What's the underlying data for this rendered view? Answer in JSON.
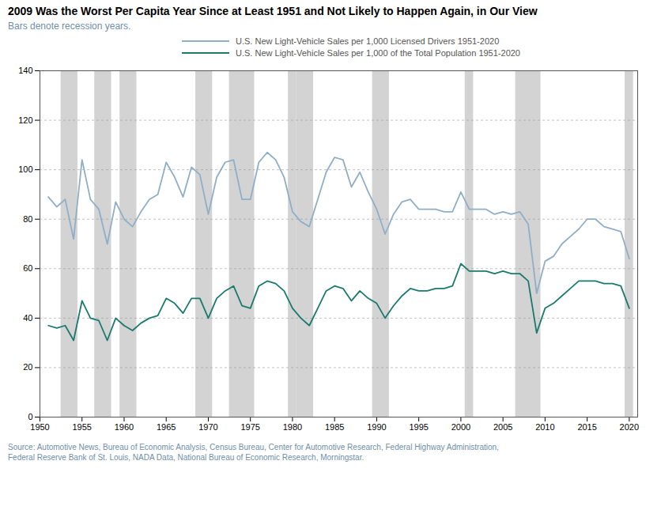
{
  "chart_data": {
    "type": "line",
    "title": "2009 Was the Worst Per Capita Year Since at Least 1951 and Not Likely to Happen Again, in Our View",
    "subtitle": "Bars denote recession years.",
    "source": [
      "Source: Automotive News, Bureau of Economic Analysis, Census Bureau, Center for Automotive Research, Federal Highway Administration,",
      "Federal Reserve Bank of St. Louis, NADA Data, National Bureau of Economic Research, Morningstar."
    ],
    "recession_bands": [
      [
        1953,
        1954
      ],
      [
        1957,
        1958
      ],
      [
        1960,
        1961
      ],
      [
        1969,
        1970
      ],
      [
        1973,
        1975
      ],
      [
        1980,
        1980
      ],
      [
        1981,
        1982
      ],
      [
        1990,
        1991
      ],
      [
        2001,
        2001
      ],
      [
        2007,
        2009
      ],
      [
        2020,
        2020
      ]
    ],
    "x": [
      1951,
      1952,
      1953,
      1954,
      1955,
      1956,
      1957,
      1958,
      1959,
      1960,
      1961,
      1962,
      1963,
      1964,
      1965,
      1966,
      1967,
      1968,
      1969,
      1970,
      1971,
      1972,
      1973,
      1974,
      1975,
      1976,
      1977,
      1978,
      1979,
      1980,
      1981,
      1982,
      1983,
      1984,
      1985,
      1986,
      1987,
      1988,
      1989,
      1990,
      1991,
      1992,
      1993,
      1994,
      1995,
      1996,
      1997,
      1998,
      1999,
      2000,
      2001,
      2002,
      2003,
      2004,
      2005,
      2006,
      2007,
      2008,
      2009,
      2010,
      2011,
      2012,
      2013,
      2014,
      2015,
      2016,
      2017,
      2018,
      2019,
      2020
    ],
    "series": [
      {
        "name": "U.S. New Light-Vehicle Sales per 1,000 Licensed Drivers 1951-2020",
        "color": "#8faec8",
        "values": [
          89,
          85,
          88,
          72,
          104,
          88,
          84,
          70,
          87,
          80,
          77,
          83,
          88,
          90,
          103,
          97,
          89,
          101,
          98,
          82,
          97,
          103,
          104,
          88,
          88,
          103,
          107,
          104,
          97,
          83,
          79,
          77,
          88,
          99,
          105,
          104,
          93,
          99,
          91,
          84,
          74,
          82,
          87,
          88,
          84,
          84,
          84,
          83,
          83,
          91,
          84,
          84,
          84,
          82,
          83,
          82,
          83,
          78,
          50,
          63,
          65,
          70,
          73,
          76,
          80,
          80,
          77,
          76,
          75,
          64
        ]
      },
      {
        "name": "U.S. New Light-Vehicle Sales per 1,000 of the Total Population 1951-2020",
        "color": "#1a7a6e",
        "values": [
          37,
          36,
          37,
          31,
          47,
          40,
          39,
          31,
          40,
          37,
          35,
          38,
          40,
          41,
          48,
          46,
          42,
          48,
          48,
          40,
          48,
          51,
          53,
          45,
          44,
          53,
          55,
          54,
          51,
          44,
          40,
          37,
          44,
          51,
          53,
          52,
          47,
          51,
          48,
          46,
          40,
          45,
          49,
          52,
          51,
          51,
          52,
          52,
          53,
          62,
          59,
          59,
          59,
          58,
          59,
          58,
          58,
          55,
          34,
          44,
          46,
          49,
          52,
          55,
          55,
          55,
          54,
          54,
          53,
          44
        ]
      }
    ],
    "xlim": [
      1950,
      2021
    ],
    "ylim": [
      0,
      140
    ],
    "xticks": [
      1950,
      1955,
      1960,
      1965,
      1970,
      1975,
      1980,
      1985,
      1990,
      1995,
      2000,
      2005,
      2010,
      2015,
      2020
    ],
    "yticks": [
      0,
      20,
      40,
      60,
      80,
      100,
      120,
      140
    ],
    "grid": true
  }
}
